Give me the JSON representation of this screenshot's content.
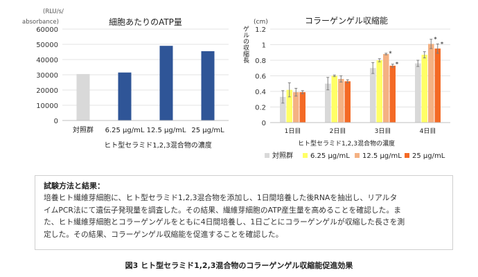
{
  "chart_data": [
    {
      "type": "bar",
      "title": "細胞あたりのATP量",
      "ylabel": "(RLU/s/ absorbance)",
      "ylabel_lines": [
        "(RLU/s/",
        "absorbance)"
      ],
      "xlabel": "ヒト型セラミド1,2,3混合物の濃度",
      "ylim": [
        0,
        60000
      ],
      "yticks": [
        "0",
        "10000",
        "20000",
        "30000",
        "40000",
        "50000",
        "60000"
      ],
      "categories": [
        "対照群",
        "6.25 μg/mL",
        "12.5 μg/mL",
        "25 μg/mL"
      ],
      "values": [
        30500,
        31500,
        49000,
        45500
      ],
      "colors": [
        "#d9d9d9",
        "#2f5597",
        "#2f5597",
        "#2f5597"
      ],
      "grid": true
    },
    {
      "type": "bar",
      "title": "コラーゲンゲル収縮能",
      "unit": "(cm)",
      "ylabel": "ゲルの収縮長",
      "xlabel": "ヒト型セラミド1,2,3混合物の濃度",
      "ylim": [
        0,
        1.2
      ],
      "yticks": [
        "0",
        "0.2",
        "0.4",
        "0.6",
        "0.8",
        "1",
        "1.2"
      ],
      "categories": [
        "1日目",
        "2日目",
        "3日目",
        "4日目"
      ],
      "series": [
        {
          "name": "対照群",
          "color": "#d9d9d9",
          "values": [
            0.33,
            0.5,
            0.7,
            0.76
          ],
          "err": [
            0.08,
            0.08,
            0.07,
            0.04
          ],
          "sig": [
            false,
            false,
            false,
            false
          ]
        },
        {
          "name": "6.25 μg/mL",
          "color": "#ffff66",
          "values": [
            0.42,
            0.6,
            0.8,
            0.87
          ],
          "err": [
            0.09,
            0.01,
            0.02,
            0.04
          ],
          "sig": [
            false,
            false,
            false,
            false
          ]
        },
        {
          "name": "12.5 μg/mL",
          "color": "#f4b183",
          "values": [
            0.39,
            0.56,
            0.88,
            1.01
          ],
          "err": [
            0.05,
            0.04,
            0.01,
            0.06
          ],
          "sig": [
            false,
            false,
            true,
            true
          ]
        },
        {
          "name": "25 μg/mL",
          "color": "#f46a25",
          "values": [
            0.39,
            0.53,
            0.73,
            0.95
          ],
          "err": [
            0.02,
            0.02,
            0.02,
            0.06
          ],
          "sig": [
            false,
            false,
            true,
            true
          ]
        }
      ],
      "sig_mark": "*",
      "legend_position": "bottom",
      "grid": true
    }
  ],
  "text_box": {
    "heading": "試験方法と結果：",
    "body": "培養ヒト繊維芽細胞に、ヒト型セラミド1,2,3混合物を添加し、1日間培養した後RNAを抽出し、リアルタ\nイムPCR法にて遺伝子発現量を調査した。その結果、繊維芽細胞のATP産生量を高めることを確認した。ま\nた、ヒト繊維芽細胞とコラーゲンゲルをともに4日間培養し、1日ごとにコラーゲンゲルが収縮した長さを測\n定した。その結果、コラーゲンゲル収縮能を促進することを確認した。"
  },
  "caption": "図3 ヒト型セラミド1,2,3混合物のコラーゲンゲル収縮能促進効果"
}
